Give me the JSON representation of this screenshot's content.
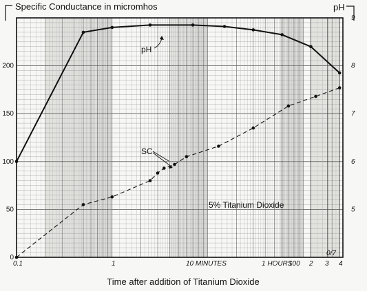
{
  "chart_data": {
    "type": "line",
    "y_left_label": "Specific Conductance in micromhos",
    "y_right_label": "pH",
    "xlabel": "Time after addition of Titanium Dioxide",
    "x_scale": "log",
    "y_left_lim": [
      0,
      250
    ],
    "y_right_lim": [
      4,
      9
    ],
    "grid": true,
    "left_ticks": [
      "0",
      "50",
      "100",
      "150",
      "200"
    ],
    "right_ticks": [
      "5",
      "6",
      "7",
      "8",
      "9"
    ],
    "x_tick_labels": [
      "0.1",
      "1",
      "10 MINUTES",
      "100",
      "1 HOURS",
      "2",
      "3",
      "4"
    ],
    "annotations": {
      "ph_label": "pH",
      "sc_label": "SC",
      "condition": "5% Titanium Dioxide",
      "code": "0/7"
    },
    "series": [
      {
        "name": "pH",
        "axis": "right",
        "style": "solid",
        "x_minutes": [
          0.1,
          0.5,
          1,
          2.5,
          7,
          15,
          30,
          60,
          120,
          240
        ],
        "values": [
          6.0,
          8.7,
          8.8,
          8.85,
          8.85,
          8.82,
          8.75,
          8.65,
          8.4,
          7.85
        ]
      },
      {
        "name": "SC",
        "axis": "left",
        "style": "dashed",
        "x_minutes": [
          0.1,
          0.5,
          1,
          2.5,
          3,
          3.5,
          4.5,
          6,
          13,
          30,
          70,
          135,
          240
        ],
        "values": [
          0,
          55,
          63,
          80,
          88,
          93,
          97,
          105,
          116,
          135,
          158,
          168,
          177
        ]
      }
    ]
  }
}
